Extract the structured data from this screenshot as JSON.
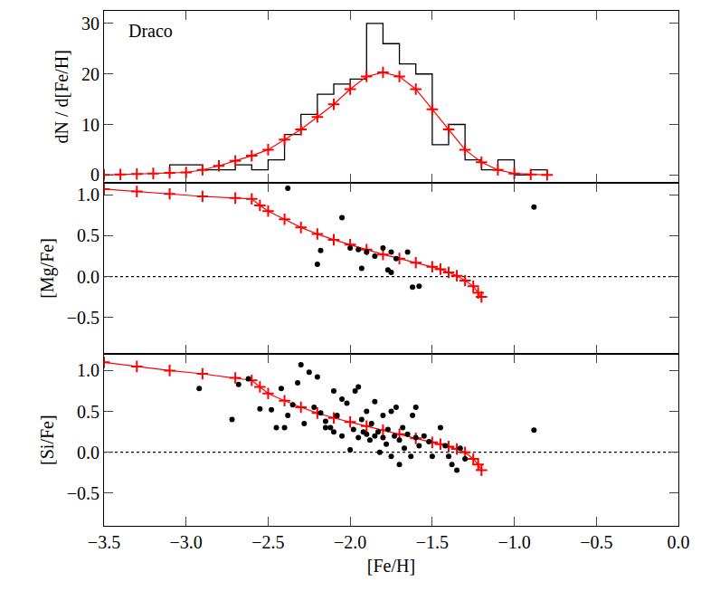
{
  "chart_data": [
    {
      "type": "histogram",
      "ylabel": "dN / d[Fe/H]",
      "annotations": [
        {
          "text": "Draco"
        }
      ],
      "xlim": [
        -3.5,
        0.0
      ],
      "xticks": [
        {
          "value": -3.5,
          "label": "−3.5"
        },
        {
          "value": -3.0,
          "label": "−3.0"
        },
        {
          "value": -2.5,
          "label": "−2.5"
        },
        {
          "value": -2.0,
          "label": "−2.0"
        },
        {
          "value": -1.5,
          "label": "−1.5"
        },
        {
          "value": -1.0,
          "label": "−1.0"
        },
        {
          "value": -0.5,
          "label": "−0.5"
        },
        {
          "value": 0.0,
          "label": "0.0"
        }
      ],
      "ylim": [
        -1.5,
        32.5
      ],
      "yticks": [
        0,
        10,
        20,
        30
      ],
      "tick_labels": "y",
      "color": "#000000",
      "bins": [
        -3.1,
        -3.0,
        -2.9,
        -2.8,
        -2.7,
        -2.6,
        -2.5,
        -2.4,
        -2.3,
        -2.2,
        -2.1,
        -2.0,
        -1.9,
        -1.8,
        -1.7,
        -1.6,
        -1.5,
        -1.4,
        -1.3,
        -1.2,
        -1.1,
        -1.0,
        -0.9,
        -0.8
      ],
      "counts": [
        2,
        2,
        1,
        1,
        2,
        1,
        3,
        8,
        12,
        16,
        18,
        19,
        30,
        26,
        22,
        20,
        6,
        10,
        3,
        1,
        3,
        0,
        1
      ],
      "series": [
        {
          "type": "line",
          "color": "#ff0000",
          "marker": "cross",
          "x": [
            -3.5,
            -3.4,
            -3.3,
            -3.2,
            -3.1,
            -3.0,
            -2.9,
            -2.8,
            -2.7,
            -2.6,
            -2.5,
            -2.4,
            -2.3,
            -2.2,
            -2.1,
            -2.0,
            -1.9,
            -1.8,
            -1.7,
            -1.6,
            -1.5,
            -1.4,
            -1.3,
            -1.2,
            -1.1,
            -1.0,
            -0.9,
            -0.8
          ],
          "values": [
            0,
            0.1,
            0.2,
            0.3,
            0.4,
            0.5,
            1,
            1.8,
            2.8,
            3.8,
            5,
            7,
            9,
            11.5,
            14,
            17,
            19.5,
            20.3,
            19.5,
            17,
            13,
            9,
            5,
            2.5,
            1,
            0.3,
            0.1,
            0
          ]
        }
      ]
    },
    {
      "type": "scatter",
      "ylabel": "[Mg/Fe]",
      "xlim": [
        -3.5,
        0.0
      ],
      "xticks": [
        {
          "value": -3.5,
          "label": "−3.5"
        },
        {
          "value": -3.0,
          "label": "−3.0"
        },
        {
          "value": -2.5,
          "label": "−2.5"
        },
        {
          "value": -2.0,
          "label": "−2.0"
        },
        {
          "value": -1.5,
          "label": "−1.5"
        },
        {
          "value": -1.0,
          "label": "−1.0"
        },
        {
          "value": -0.5,
          "label": "−0.5"
        },
        {
          "value": 0.0,
          "label": "0.0"
        }
      ],
      "ylim": [
        -0.95,
        1.15
      ],
      "yticks": [
        {
          "value": -0.5,
          "label": "−0.5"
        },
        {
          "value": 0.0,
          "label": "0.0"
        },
        {
          "value": 0.5,
          "label": "0.5"
        },
        {
          "value": 1.0,
          "label": "1.0"
        }
      ],
      "tick_labels": "y",
      "series": [
        {
          "type": "line",
          "color": "#000000",
          "line_style": "dotted",
          "x": [
            -3.5,
            0.0
          ],
          "values": [
            0,
            0
          ]
        },
        {
          "type": "line",
          "color": "#ff0000",
          "marker": "cross",
          "x": [
            -3.5,
            -3.3,
            -3.1,
            -2.9,
            -2.7,
            -2.6,
            -2.55,
            -2.5,
            -2.4,
            -2.3,
            -2.2,
            -2.1,
            -2.0,
            -1.9,
            -1.8,
            -1.7,
            -1.6,
            -1.5,
            -1.45,
            -1.4,
            -1.35,
            -1.3,
            -1.25,
            -1.22,
            -1.2
          ],
          "values": [
            1.07,
            1.04,
            1.01,
            0.98,
            0.96,
            0.95,
            0.87,
            0.8,
            0.7,
            0.6,
            0.52,
            0.45,
            0.39,
            0.33,
            0.27,
            0.22,
            0.17,
            0.12,
            0.09,
            0.05,
            0.01,
            -0.05,
            -0.12,
            -0.2,
            -0.25
          ]
        },
        {
          "type": "scatter",
          "color": "#000000",
          "marker": "circle",
          "x": [
            -2.38,
            -2.05,
            -2.18,
            -2.2,
            -2.0,
            -1.95,
            -1.9,
            -1.85,
            -1.8,
            -1.75,
            -1.72,
            -1.93,
            -1.77,
            -1.75,
            -1.65,
            -1.62,
            -1.58,
            -0.88
          ],
          "values": [
            1.08,
            0.72,
            0.32,
            0.15,
            0.35,
            0.33,
            0.3,
            0.25,
            0.35,
            0.3,
            0.22,
            0.1,
            0.08,
            0.05,
            0.3,
            -0.13,
            -0.12,
            0.85
          ]
        }
      ]
    },
    {
      "type": "scatter",
      "ylabel": "[Si/Fe]",
      "xlabel": "[Fe/H]",
      "xlim": [
        -3.5,
        0.0
      ],
      "xticks": [
        {
          "value": -3.5,
          "label": "−3.5"
        },
        {
          "value": -3.0,
          "label": "−3.0"
        },
        {
          "value": -2.5,
          "label": "−2.5"
        },
        {
          "value": -2.0,
          "label": "−2.0"
        },
        {
          "value": -1.5,
          "label": "−1.5"
        },
        {
          "value": -1.0,
          "label": "−1.0"
        },
        {
          "value": -0.5,
          "label": "−0.5"
        },
        {
          "value": 0.0,
          "label": "0.0"
        }
      ],
      "ylim": [
        -0.9,
        1.2
      ],
      "yticks": [
        {
          "value": -0.5,
          "label": "−0.5"
        },
        {
          "value": 0.0,
          "label": "0.0"
        },
        {
          "value": 0.5,
          "label": "0.5"
        },
        {
          "value": 1.0,
          "label": "1.0"
        }
      ],
      "series": [
        {
          "type": "line",
          "color": "#000000",
          "line_style": "dotted",
          "x": [
            -3.5,
            0.0
          ],
          "values": [
            0,
            0
          ]
        },
        {
          "type": "line",
          "color": "#ff0000",
          "marker": "cross",
          "x": [
            -3.5,
            -3.3,
            -3.1,
            -2.9,
            -2.7,
            -2.6,
            -2.55,
            -2.5,
            -2.4,
            -2.3,
            -2.2,
            -2.1,
            -2.0,
            -1.9,
            -1.8,
            -1.7,
            -1.6,
            -1.5,
            -1.45,
            -1.4,
            -1.35,
            -1.3,
            -1.25,
            -1.22,
            -1.2
          ],
          "values": [
            1.1,
            1.05,
            1.0,
            0.96,
            0.91,
            0.88,
            0.8,
            0.72,
            0.63,
            0.55,
            0.48,
            0.42,
            0.37,
            0.32,
            0.27,
            0.22,
            0.17,
            0.12,
            0.1,
            0.07,
            0.04,
            0.0,
            -0.08,
            -0.15,
            -0.22
          ]
        },
        {
          "type": "scatter",
          "color": "#000000",
          "marker": "circle",
          "x": [
            -2.92,
            -2.72,
            -2.68,
            -2.62,
            -2.55,
            -2.48,
            -2.45,
            -2.42,
            -2.4,
            -2.38,
            -2.35,
            -2.32,
            -2.3,
            -2.28,
            -2.25,
            -2.22,
            -2.2,
            -2.18,
            -2.15,
            -2.15,
            -2.12,
            -2.1,
            -2.1,
            -2.08,
            -2.05,
            -2.05,
            -2.02,
            -2.0,
            -1.98,
            -1.97,
            -1.95,
            -1.95,
            -1.93,
            -1.92,
            -1.9,
            -1.9,
            -1.88,
            -1.87,
            -1.85,
            -1.85,
            -1.83,
            -1.82,
            -1.8,
            -1.8,
            -1.78,
            -1.77,
            -1.75,
            -1.75,
            -1.73,
            -1.72,
            -1.7,
            -1.7,
            -1.68,
            -1.67,
            -1.65,
            -1.63,
            -1.62,
            -1.6,
            -1.6,
            -1.58,
            -1.55,
            -1.52,
            -1.5,
            -1.45,
            -1.42,
            -1.4,
            -1.38,
            -1.35,
            -1.33,
            -1.3,
            -0.88
          ],
          "values": [
            0.78,
            0.4,
            0.83,
            0.9,
            0.53,
            0.52,
            0.3,
            0.78,
            0.3,
            0.45,
            0.58,
            0.85,
            1.07,
            0.35,
            0.98,
            0.55,
            0.92,
            0.48,
            0.38,
            0.3,
            0.3,
            0.75,
            0.25,
            0.45,
            0.65,
            0.2,
            0.6,
            0.03,
            0.28,
            0.75,
            0.8,
            0.18,
            0.4,
            0.25,
            0.22,
            0.5,
            0.15,
            0.35,
            0.2,
            0.62,
            0.25,
            0.0,
            0.18,
            0.45,
            0.1,
            0.28,
            -0.05,
            0.5,
            0.2,
            0.55,
            0.15,
            -0.15,
            0.3,
            0.05,
            0.22,
            -0.05,
            0.45,
            0.18,
            0.55,
            0.08,
            0.2,
            0.13,
            -0.05,
            0.3,
            0.08,
            -0.05,
            -0.15,
            -0.22,
            0.05,
            -0.08,
            0.27
          ]
        }
      ]
    }
  ]
}
